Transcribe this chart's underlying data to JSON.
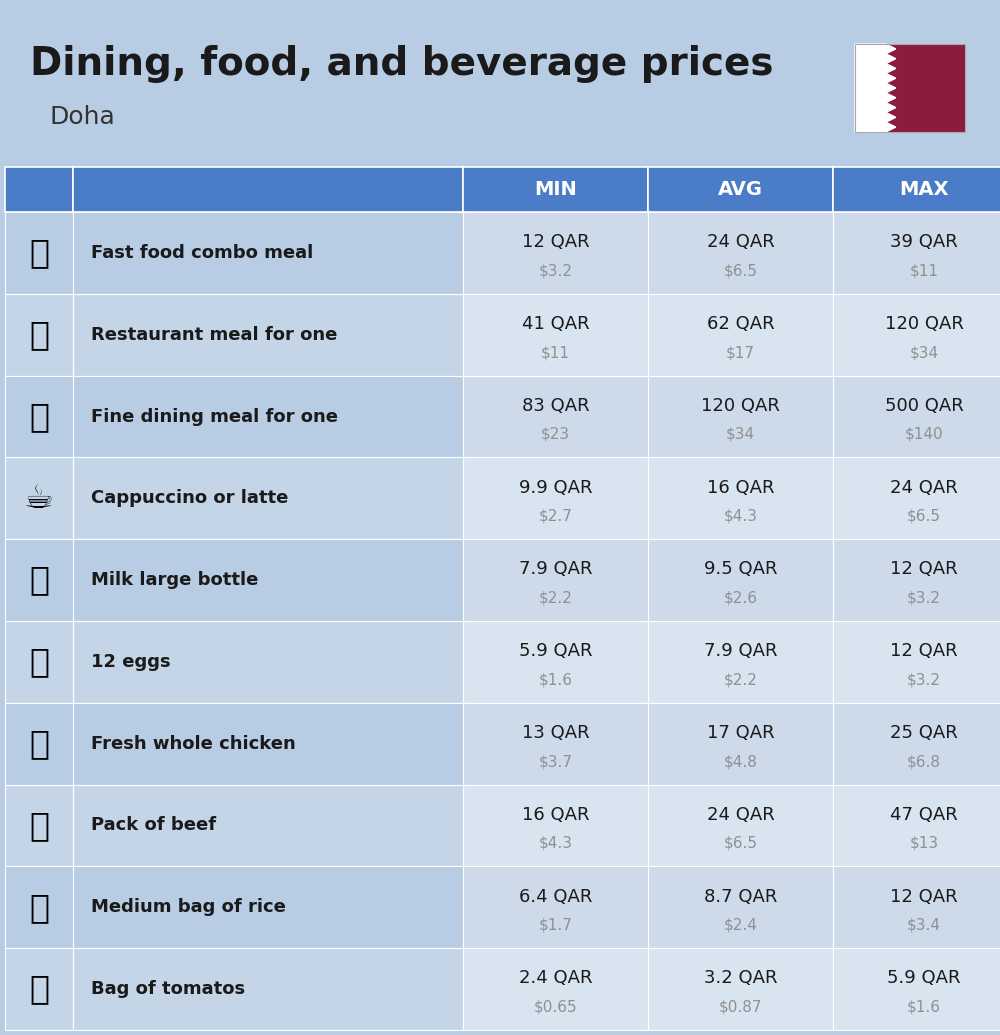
{
  "title": "Dining, food, and beverage prices",
  "subtitle": "Doha",
  "bg_color": "#b8cce4",
  "header_bg": "#4a7cc7",
  "header_text_color": "#ffffff",
  "row_bg_even": "#c5d5e8",
  "row_bg_odd": "#b8cce4",
  "cell_bg_even": "#d8e4f0",
  "cell_bg_odd": "#cddaea",
  "columns": [
    "MIN",
    "AVG",
    "MAX"
  ],
  "rows": [
    {
      "label": "Fast food combo meal",
      "min_qar": "12 QAR",
      "min_usd": "$3.2",
      "avg_qar": "24 QAR",
      "avg_usd": "$6.5",
      "max_qar": "39 QAR",
      "max_usd": "$11"
    },
    {
      "label": "Restaurant meal for one",
      "min_qar": "41 QAR",
      "min_usd": "$11",
      "avg_qar": "62 QAR",
      "avg_usd": "$17",
      "max_qar": "120 QAR",
      "max_usd": "$34"
    },
    {
      "label": "Fine dining meal for one",
      "min_qar": "83 QAR",
      "min_usd": "$23",
      "avg_qar": "120 QAR",
      "avg_usd": "$34",
      "max_qar": "500 QAR",
      "max_usd": "$140"
    },
    {
      "label": "Cappuccino or latte",
      "min_qar": "9.9 QAR",
      "min_usd": "$2.7",
      "avg_qar": "16 QAR",
      "avg_usd": "$4.3",
      "max_qar": "24 QAR",
      "max_usd": "$6.5"
    },
    {
      "label": "Milk large bottle",
      "min_qar": "7.9 QAR",
      "min_usd": "$2.2",
      "avg_qar": "9.5 QAR",
      "avg_usd": "$2.6",
      "max_qar": "12 QAR",
      "max_usd": "$3.2"
    },
    {
      "label": "12 eggs",
      "min_qar": "5.9 QAR",
      "min_usd": "$1.6",
      "avg_qar": "7.9 QAR",
      "avg_usd": "$2.2",
      "max_qar": "12 QAR",
      "max_usd": "$3.2"
    },
    {
      "label": "Fresh whole chicken",
      "min_qar": "13 QAR",
      "min_usd": "$3.7",
      "avg_qar": "17 QAR",
      "avg_usd": "$4.8",
      "max_qar": "25 QAR",
      "max_usd": "$6.8"
    },
    {
      "label": "Pack of beef",
      "min_qar": "16 QAR",
      "min_usd": "$4.3",
      "avg_qar": "24 QAR",
      "avg_usd": "$6.5",
      "max_qar": "47 QAR",
      "max_usd": "$13"
    },
    {
      "label": "Medium bag of rice",
      "min_qar": "6.4 QAR",
      "min_usd": "$1.7",
      "avg_qar": "8.7 QAR",
      "avg_usd": "$2.4",
      "max_qar": "12 QAR",
      "max_usd": "$3.4"
    },
    {
      "label": "Bag of tomatos",
      "min_qar": "2.4 QAR",
      "min_usd": "$0.65",
      "avg_qar": "3.2 QAR",
      "avg_usd": "$0.87",
      "max_qar": "5.9 QAR",
      "max_usd": "$1.6"
    }
  ],
  "emoji_texts": [
    "🍔",
    "🍳",
    "🍽",
    "☕️",
    "🥛",
    "🥚",
    "🐔",
    "🥩",
    "🍚",
    "🍅"
  ],
  "flag_white": "#ffffff",
  "flag_maroon": "#8d1b3d",
  "title_fontsize": 28,
  "subtitle_fontsize": 18,
  "header_fontsize": 14,
  "label_fontsize": 13,
  "value_fontsize": 13,
  "usd_fontsize": 11,
  "sep_color": "#ffffff",
  "text_dark": "#1a1a1a",
  "text_gray": "#909090"
}
